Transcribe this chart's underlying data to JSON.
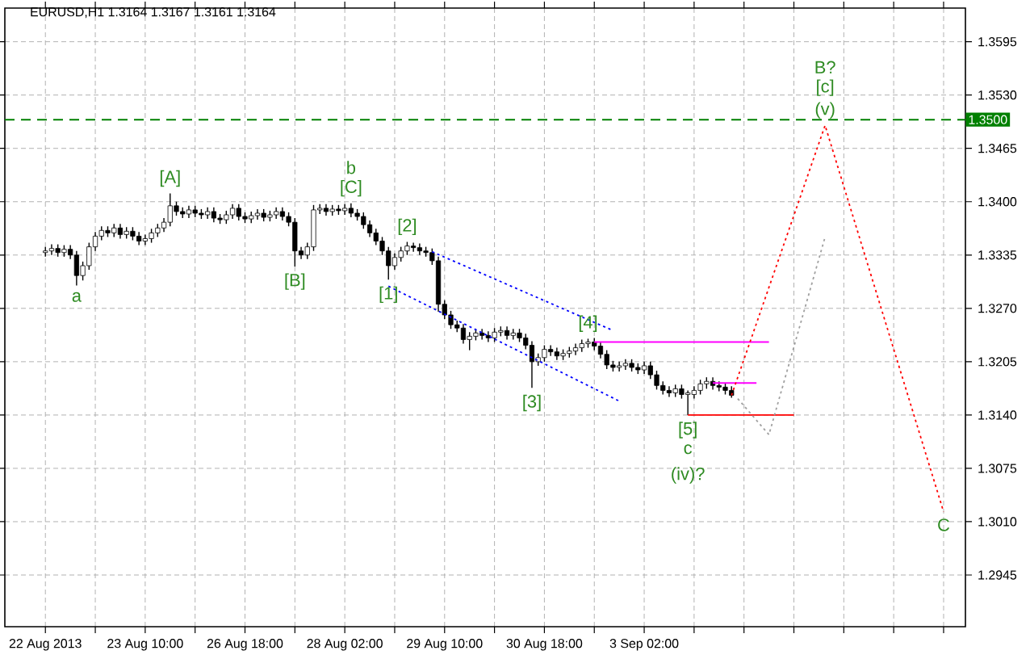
{
  "chart_data": {
    "type": "candlestick",
    "title": "EURUSD,H1  1.3164 1.3167 1.3161 1.3164",
    "color": "#000000",
    "categories": [
      "22 Aug 2013",
      null,
      null,
      null,
      null,
      null,
      null,
      null,
      null,
      null,
      null,
      null,
      null,
      null,
      null,
      null,
      "23 Aug 10:00",
      null,
      null,
      null,
      null,
      null,
      null,
      null,
      null,
      null,
      null,
      null,
      null,
      null,
      null,
      null,
      "26 Aug 18:00",
      null,
      null,
      null,
      null,
      null,
      null,
      null,
      null,
      null,
      null,
      null,
      null,
      null,
      null,
      null,
      "28 Aug 02:00",
      null,
      null,
      null,
      null,
      null,
      null,
      null,
      null,
      null,
      null,
      null,
      null,
      null,
      null,
      null,
      "29 Aug 10:00",
      null,
      null,
      null,
      null,
      null,
      null,
      null,
      null,
      null,
      null,
      null,
      null,
      null,
      null,
      null,
      "30 Aug 18:00",
      null,
      null,
      null,
      null,
      null,
      null,
      null,
      null,
      null,
      null,
      null,
      null,
      null,
      null,
      null,
      "3 Sep 02:00",
      null,
      null,
      null,
      null,
      null,
      null,
      null,
      null,
      null,
      null,
      null,
      null,
      null,
      null,
      null,
      null,
      null,
      null,
      null,
      null,
      null,
      null,
      null,
      null,
      null,
      null,
      null,
      null,
      null,
      null,
      null,
      null,
      null,
      null,
      null,
      null,
      null,
      null,
      null,
      null,
      null,
      null,
      null,
      null,
      null,
      null,
      null,
      null,
      null,
      null,
      null
    ],
    "ohlc": [
      [
        1.3338,
        1.3345,
        1.3333,
        1.334
      ],
      [
        1.334,
        1.3348,
        1.3335,
        1.3343
      ],
      [
        1.3343,
        1.3348,
        1.3333,
        1.3338
      ],
      [
        1.3338,
        1.3347,
        1.3333,
        1.3342
      ],
      [
        1.3342,
        1.3347,
        1.333,
        1.3335
      ],
      [
        1.3335,
        1.334,
        1.3298,
        1.331
      ],
      [
        1.331,
        1.3327,
        1.3304,
        1.3322
      ],
      [
        1.3322,
        1.335,
        1.3317,
        1.3345
      ],
      [
        1.3345,
        1.3363,
        1.334,
        1.3358
      ],
      [
        1.3358,
        1.337,
        1.3353,
        1.3365
      ],
      [
        1.3365,
        1.337,
        1.3357,
        1.3362
      ],
      [
        1.3362,
        1.3373,
        1.3357,
        1.3368
      ],
      [
        1.3368,
        1.3373,
        1.3355,
        1.336
      ],
      [
        1.336,
        1.3369,
        1.3355,
        1.3364
      ],
      [
        1.3364,
        1.3369,
        1.3353,
        1.3358
      ],
      [
        1.3358,
        1.3363,
        1.3347,
        1.3352
      ],
      [
        1.3352,
        1.336,
        1.3347,
        1.3355
      ],
      [
        1.3355,
        1.3367,
        1.335,
        1.3362
      ],
      [
        1.3362,
        1.3373,
        1.3357,
        1.3368
      ],
      [
        1.3368,
        1.338,
        1.3363,
        1.3375
      ],
      [
        1.3375,
        1.341,
        1.337,
        1.3395
      ],
      [
        1.3395,
        1.34,
        1.3383,
        1.3388
      ],
      [
        1.3388,
        1.3393,
        1.338,
        1.3385
      ],
      [
        1.3385,
        1.3395,
        1.338,
        1.339
      ],
      [
        1.339,
        1.3395,
        1.3381,
        1.3386
      ],
      [
        1.3386,
        1.3391,
        1.3379,
        1.3384
      ],
      [
        1.3384,
        1.3393,
        1.3379,
        1.3388
      ],
      [
        1.3388,
        1.3393,
        1.3375,
        1.338
      ],
      [
        1.338,
        1.3385,
        1.3373,
        1.3378
      ],
      [
        1.3378,
        1.3389,
        1.3373,
        1.3384
      ],
      [
        1.3384,
        1.3397,
        1.3379,
        1.3392
      ],
      [
        1.3392,
        1.3397,
        1.3377,
        1.3382
      ],
      [
        1.3382,
        1.3387,
        1.3374,
        1.3379
      ],
      [
        1.3379,
        1.3388,
        1.3374,
        1.3383
      ],
      [
        1.3383,
        1.3391,
        1.3378,
        1.3386
      ],
      [
        1.3386,
        1.3391,
        1.3376,
        1.3381
      ],
      [
        1.3381,
        1.3389,
        1.3376,
        1.3384
      ],
      [
        1.3384,
        1.3393,
        1.3379,
        1.3388
      ],
      [
        1.3388,
        1.3393,
        1.3377,
        1.3382
      ],
      [
        1.3382,
        1.3387,
        1.337,
        1.3375
      ],
      [
        1.3375,
        1.338,
        1.3321,
        1.334
      ],
      [
        1.334,
        1.3345,
        1.333,
        1.3335
      ],
      [
        1.3335,
        1.335,
        1.333,
        1.3345
      ],
      [
        1.3345,
        1.3396,
        1.334,
        1.339
      ],
      [
        1.339,
        1.3397,
        1.3385,
        1.3392
      ],
      [
        1.3392,
        1.3397,
        1.3383,
        1.3388
      ],
      [
        1.3388,
        1.3396,
        1.3383,
        1.3391
      ],
      [
        1.3391,
        1.3396,
        1.3384,
        1.3389
      ],
      [
        1.3389,
        1.3397,
        1.3384,
        1.3392
      ],
      [
        1.3392,
        1.3398,
        1.3381,
        1.3386
      ],
      [
        1.3386,
        1.3391,
        1.3377,
        1.3382
      ],
      [
        1.3382,
        1.3387,
        1.3367,
        1.3372
      ],
      [
        1.3372,
        1.3377,
        1.3357,
        1.3362
      ],
      [
        1.3362,
        1.3367,
        1.3347,
        1.3352
      ],
      [
        1.3352,
        1.3357,
        1.3335,
        1.334
      ],
      [
        1.334,
        1.3345,
        1.3305,
        1.3322
      ],
      [
        1.3322,
        1.3337,
        1.3317,
        1.3332
      ],
      [
        1.3332,
        1.3345,
        1.3327,
        1.334
      ],
      [
        1.334,
        1.3351,
        1.3335,
        1.3346
      ],
      [
        1.3346,
        1.335,
        1.3339,
        1.3344
      ],
      [
        1.3344,
        1.3349,
        1.3335,
        1.334
      ],
      [
        1.334,
        1.3345,
        1.3333,
        1.3338
      ],
      [
        1.3338,
        1.3343,
        1.3323,
        1.3328
      ],
      [
        1.3328,
        1.3333,
        1.3266,
        1.3275
      ],
      [
        1.3275,
        1.328,
        1.3257,
        1.3262
      ],
      [
        1.3262,
        1.3267,
        1.3245,
        1.325
      ],
      [
        1.325,
        1.3255,
        1.3241,
        1.3246
      ],
      [
        1.3246,
        1.3251,
        1.3227,
        1.3232
      ],
      [
        1.3232,
        1.3241,
        1.3219,
        1.3236
      ],
      [
        1.3236,
        1.3245,
        1.3231,
        1.324
      ],
      [
        1.324,
        1.3245,
        1.3232,
        1.3237
      ],
      [
        1.3237,
        1.3242,
        1.3229,
        1.3234
      ],
      [
        1.3234,
        1.3246,
        1.3229,
        1.3241
      ],
      [
        1.3241,
        1.3248,
        1.3236,
        1.3243
      ],
      [
        1.3243,
        1.3248,
        1.3232,
        1.3237
      ],
      [
        1.3237,
        1.3245,
        1.3232,
        1.324
      ],
      [
        1.324,
        1.3245,
        1.3229,
        1.3234
      ],
      [
        1.3234,
        1.3239,
        1.322,
        1.3225
      ],
      [
        1.3225,
        1.323,
        1.3173,
        1.3205
      ],
      [
        1.3205,
        1.3215,
        1.32,
        1.321
      ],
      [
        1.321,
        1.3225,
        1.3205,
        1.322
      ],
      [
        1.322,
        1.3225,
        1.3212,
        1.3217
      ],
      [
        1.3217,
        1.3222,
        1.3207,
        1.3212
      ],
      [
        1.3212,
        1.322,
        1.3207,
        1.3215
      ],
      [
        1.3215,
        1.3223,
        1.321,
        1.3218
      ],
      [
        1.3218,
        1.3227,
        1.3213,
        1.3222
      ],
      [
        1.3222,
        1.3232,
        1.3217,
        1.3227
      ],
      [
        1.3227,
        1.3233,
        1.3222,
        1.3229
      ],
      [
        1.3229,
        1.3234,
        1.3219,
        1.3224
      ],
      [
        1.3224,
        1.3229,
        1.3209,
        1.3214
      ],
      [
        1.3214,
        1.3219,
        1.3196,
        1.3201
      ],
      [
        1.3201,
        1.3206,
        1.3193,
        1.3198
      ],
      [
        1.3198,
        1.3205,
        1.3193,
        1.32
      ],
      [
        1.32,
        1.3208,
        1.3195,
        1.3203
      ],
      [
        1.3203,
        1.3208,
        1.3193,
        1.3198
      ],
      [
        1.3198,
        1.3203,
        1.319,
        1.3195
      ],
      [
        1.3195,
        1.3205,
        1.319,
        1.32
      ],
      [
        1.32,
        1.3205,
        1.3184,
        1.3189
      ],
      [
        1.3189,
        1.3194,
        1.3171,
        1.3176
      ],
      [
        1.3176,
        1.3181,
        1.3165,
        1.317
      ],
      [
        1.317,
        1.3175,
        1.3162,
        1.3167
      ],
      [
        1.3167,
        1.3177,
        1.3162,
        1.3172
      ],
      [
        1.3172,
        1.3177,
        1.316,
        1.3165
      ],
      [
        1.3165,
        1.317,
        1.314,
        1.3167
      ],
      [
        1.3165,
        1.3175,
        1.316,
        1.317
      ],
      [
        1.317,
        1.3183,
        1.3165,
        1.3178
      ],
      [
        1.3178,
        1.3186,
        1.3172,
        1.3181
      ],
      [
        1.3181,
        1.3186,
        1.3171,
        1.3176
      ],
      [
        1.3176,
        1.3181,
        1.3169,
        1.3174
      ],
      [
        1.3174,
        1.3179,
        1.3165,
        1.317
      ],
      [
        1.317,
        1.3175,
        1.3161,
        1.3164
      ],
      null,
      null,
      null,
      null,
      null,
      null,
      null,
      null,
      null,
      null,
      null,
      null,
      null,
      null,
      null,
      null,
      null,
      null,
      null,
      null,
      null,
      null,
      null,
      null,
      null,
      null,
      null,
      null,
      null,
      null,
      null,
      null,
      null,
      null,
      null,
      null,
      null
    ],
    "series": [
      {
        "type": "line",
        "color": "#0000ff",
        "line_style": "dotted",
        "values": [
          null,
          null,
          null,
          null,
          null,
          null,
          null,
          null,
          null,
          null,
          null,
          null,
          null,
          null,
          null,
          null,
          null,
          null,
          null,
          null,
          null,
          null,
          null,
          null,
          null,
          null,
          null,
          null,
          null,
          null,
          null,
          null,
          null,
          null,
          null,
          null,
          null,
          null,
          null,
          null,
          null,
          null,
          null,
          null,
          null,
          null,
          null,
          null,
          null,
          null,
          null,
          null,
          null,
          null,
          null,
          null,
          null,
          null,
          null,
          null,
          null,
          null,
          1.3339,
          null,
          null,
          null,
          null,
          null,
          null,
          null,
          null,
          null,
          null,
          null,
          null,
          null,
          null,
          null,
          null,
          null,
          null,
          null,
          null,
          null,
          null,
          null,
          null,
          null,
          null,
          null,
          null,
          1.3243,
          null,
          null,
          null,
          null,
          null,
          null,
          null,
          null,
          null,
          null,
          null,
          null,
          null,
          null,
          null,
          null,
          null,
          null,
          null,
          null,
          null,
          null,
          null,
          null,
          null,
          null,
          null,
          null,
          null,
          null,
          null,
          null,
          null,
          null,
          null,
          null,
          null,
          null,
          null,
          null,
          null,
          null,
          null,
          null,
          null,
          null,
          null,
          null,
          null,
          null,
          null,
          null,
          null,
          null,
          null,
          null
        ]
      },
      {
        "type": "line",
        "color": "#0000ff",
        "line_style": "dotted",
        "values": [
          null,
          null,
          null,
          null,
          null,
          null,
          null,
          null,
          null,
          null,
          null,
          null,
          null,
          null,
          null,
          null,
          null,
          null,
          null,
          null,
          null,
          null,
          null,
          null,
          null,
          null,
          null,
          null,
          null,
          null,
          null,
          null,
          null,
          null,
          null,
          null,
          null,
          null,
          null,
          null,
          null,
          null,
          null,
          null,
          null,
          null,
          null,
          null,
          null,
          null,
          null,
          null,
          null,
          null,
          null,
          1.3297,
          null,
          null,
          null,
          null,
          null,
          null,
          null,
          null,
          null,
          null,
          null,
          null,
          null,
          null,
          null,
          null,
          null,
          null,
          null,
          null,
          null,
          null,
          null,
          null,
          null,
          null,
          null,
          null,
          null,
          null,
          null,
          null,
          null,
          null,
          null,
          null,
          1.3157,
          null,
          null,
          null,
          null,
          null,
          null,
          null,
          null,
          null,
          null,
          null,
          null,
          null,
          null,
          null,
          null,
          null,
          null,
          null,
          null,
          null,
          null,
          null,
          null,
          null,
          null,
          null,
          null,
          null,
          null,
          null,
          null,
          null,
          null,
          null,
          null,
          null,
          null,
          null,
          null,
          null,
          null,
          null,
          null,
          null,
          null,
          null,
          null,
          null,
          null,
          null,
          null,
          null,
          null,
          null
        ]
      },
      {
        "type": "line",
        "color": "#ff00ff",
        "line_style": "solid",
        "values": [
          null,
          null,
          null,
          null,
          null,
          null,
          null,
          null,
          null,
          null,
          null,
          null,
          null,
          null,
          null,
          null,
          null,
          null,
          null,
          null,
          null,
          null,
          null,
          null,
          null,
          null,
          null,
          null,
          null,
          null,
          null,
          null,
          null,
          null,
          null,
          null,
          null,
          null,
          null,
          null,
          null,
          null,
          null,
          null,
          null,
          null,
          null,
          null,
          null,
          null,
          null,
          null,
          null,
          null,
          null,
          null,
          null,
          null,
          null,
          null,
          null,
          null,
          null,
          null,
          null,
          null,
          null,
          null,
          null,
          null,
          null,
          null,
          null,
          null,
          null,
          null,
          null,
          null,
          null,
          null,
          null,
          null,
          null,
          null,
          null,
          null,
          null,
          null,
          1.3229,
          null,
          null,
          null,
          null,
          null,
          null,
          null,
          null,
          null,
          null,
          null,
          null,
          null,
          null,
          null,
          null,
          null,
          null,
          null,
          null,
          null,
          null,
          null,
          null,
          null,
          null,
          null,
          1.3229,
          null,
          null,
          null,
          null,
          null,
          null,
          null,
          null,
          null,
          null,
          null,
          null,
          null,
          null,
          null,
          null,
          null,
          null,
          null,
          null,
          null,
          null,
          null,
          null,
          null,
          null,
          null,
          null,
          null,
          null,
          null
        ]
      },
      {
        "type": "line",
        "color": "#ff00ff",
        "line_style": "solid",
        "values": [
          null,
          null,
          null,
          null,
          null,
          null,
          null,
          null,
          null,
          null,
          null,
          null,
          null,
          null,
          null,
          null,
          null,
          null,
          null,
          null,
          null,
          null,
          null,
          null,
          null,
          null,
          null,
          null,
          null,
          null,
          null,
          null,
          null,
          null,
          null,
          null,
          null,
          null,
          null,
          null,
          null,
          null,
          null,
          null,
          null,
          null,
          null,
          null,
          null,
          null,
          null,
          null,
          null,
          null,
          null,
          null,
          null,
          null,
          null,
          null,
          null,
          null,
          null,
          null,
          null,
          null,
          null,
          null,
          null,
          null,
          null,
          null,
          null,
          null,
          null,
          null,
          null,
          null,
          null,
          null,
          null,
          null,
          null,
          null,
          null,
          null,
          null,
          null,
          null,
          null,
          null,
          null,
          null,
          null,
          null,
          null,
          null,
          null,
          null,
          null,
          null,
          null,
          null,
          null,
          null,
          null,
          null,
          1.3179,
          null,
          null,
          null,
          null,
          null,
          null,
          1.3179,
          null,
          null,
          null,
          null,
          null,
          null,
          null,
          null,
          null,
          null,
          null,
          null,
          null,
          null,
          null,
          null,
          null,
          null,
          null,
          null,
          null,
          null,
          null,
          null,
          null,
          null,
          null,
          null,
          null,
          null,
          null,
          null,
          null
        ]
      },
      {
        "type": "line",
        "color": "#ff0000",
        "line_style": "solid",
        "values": [
          null,
          null,
          null,
          null,
          null,
          null,
          null,
          null,
          null,
          null,
          null,
          null,
          null,
          null,
          null,
          null,
          null,
          null,
          null,
          null,
          null,
          null,
          null,
          null,
          null,
          null,
          null,
          null,
          null,
          null,
          null,
          null,
          null,
          null,
          null,
          null,
          null,
          null,
          null,
          null,
          null,
          null,
          null,
          null,
          null,
          null,
          null,
          null,
          null,
          null,
          null,
          null,
          null,
          null,
          null,
          null,
          null,
          null,
          null,
          null,
          null,
          null,
          null,
          null,
          null,
          null,
          null,
          null,
          null,
          null,
          null,
          null,
          null,
          null,
          null,
          null,
          null,
          null,
          null,
          null,
          null,
          null,
          null,
          null,
          null,
          null,
          null,
          null,
          null,
          null,
          null,
          null,
          null,
          null,
          null,
          null,
          null,
          null,
          null,
          null,
          null,
          null,
          null,
          1.314,
          null,
          null,
          null,
          null,
          null,
          null,
          null,
          null,
          null,
          null,
          null,
          null,
          null,
          null,
          null,
          null,
          1.314,
          null,
          null,
          null,
          null,
          null,
          null,
          null,
          null,
          null,
          null,
          null,
          null,
          null,
          null,
          null,
          null,
          null,
          null,
          null,
          null,
          null,
          null,
          null,
          null,
          null,
          null,
          null
        ]
      },
      {
        "type": "line",
        "color": "#ff0000",
        "line_style": "dotted",
        "values": [
          null,
          null,
          null,
          null,
          null,
          null,
          null,
          null,
          null,
          null,
          null,
          null,
          null,
          null,
          null,
          null,
          null,
          null,
          null,
          null,
          null,
          null,
          null,
          null,
          null,
          null,
          null,
          null,
          null,
          null,
          null,
          null,
          null,
          null,
          null,
          null,
          null,
          null,
          null,
          null,
          null,
          null,
          null,
          null,
          null,
          null,
          null,
          null,
          null,
          null,
          null,
          null,
          null,
          null,
          null,
          null,
          null,
          null,
          null,
          null,
          null,
          null,
          null,
          null,
          null,
          null,
          null,
          null,
          null,
          null,
          null,
          null,
          null,
          null,
          null,
          null,
          null,
          null,
          null,
          null,
          null,
          null,
          null,
          null,
          null,
          null,
          null,
          null,
          null,
          null,
          null,
          null,
          null,
          null,
          null,
          null,
          null,
          null,
          null,
          null,
          null,
          null,
          null,
          null,
          null,
          null,
          null,
          null,
          null,
          null,
          1.3164,
          null,
          null,
          null,
          null,
          null,
          null,
          null,
          null,
          null,
          null,
          null,
          null,
          null,
          null,
          1.3493,
          null,
          null,
          null,
          null,
          null,
          null,
          null,
          null,
          null,
          null,
          null,
          null,
          null,
          null,
          null,
          null,
          null,
          null,
          1.3022,
          null,
          null,
          null
        ]
      },
      {
        "type": "line",
        "color": "#a0a0a0",
        "line_style": "dotted",
        "values": [
          null,
          null,
          null,
          null,
          null,
          null,
          null,
          null,
          null,
          null,
          null,
          null,
          null,
          null,
          null,
          null,
          null,
          null,
          null,
          null,
          null,
          null,
          null,
          null,
          null,
          null,
          null,
          null,
          null,
          null,
          null,
          null,
          null,
          null,
          null,
          null,
          null,
          null,
          null,
          null,
          null,
          null,
          null,
          null,
          null,
          null,
          null,
          null,
          null,
          null,
          null,
          null,
          null,
          null,
          null,
          null,
          null,
          null,
          null,
          null,
          null,
          null,
          null,
          null,
          null,
          null,
          null,
          null,
          null,
          null,
          null,
          null,
          null,
          null,
          null,
          null,
          null,
          null,
          null,
          null,
          null,
          null,
          null,
          null,
          null,
          null,
          null,
          null,
          null,
          null,
          null,
          null,
          null,
          null,
          null,
          null,
          null,
          null,
          null,
          null,
          null,
          null,
          null,
          null,
          null,
          null,
          null,
          null,
          null,
          null,
          null,
          1.316,
          null,
          null,
          null,
          null,
          1.3116,
          null,
          null,
          null,
          null,
          null,
          null,
          null,
          null,
          1.3357,
          null,
          null,
          null,
          null,
          null,
          null,
          null,
          null,
          null,
          null,
          null,
          null,
          null,
          null,
          null,
          null,
          null,
          null,
          null,
          null,
          null,
          null
        ]
      }
    ],
    "ref_lines": [
      {
        "axis": "y",
        "value": 1.35,
        "label": "1.3500",
        "color": "#008000",
        "line_style": "dashed"
      }
    ],
    "annotations": [
      {
        "text": "a",
        "y": 1.3298
      },
      {
        "text": "[A]",
        "y": 1.341
      },
      {
        "text": "[B]",
        "y": 1.3321
      },
      {
        "text": "b",
        "y": 1.3398
      },
      {
        "text": "[C]",
        "y": 1.3398
      },
      {
        "text": "[1]",
        "y": 1.3305
      },
      {
        "text": "[2]",
        "y": 1.3351
      },
      {
        "text": "[3]",
        "y": 1.3173
      },
      {
        "text": "[4]",
        "y": 1.3233
      },
      {
        "text": "[5]",
        "y": 1.314
      },
      {
        "text": "c",
        "y": 1.314
      },
      {
        "text": "(iv)?",
        "y": 1.314
      },
      {
        "text": "B?",
        "y": 1.3493
      },
      {
        "text": "[c]",
        "y": 1.3493
      },
      {
        "text": "(v)",
        "y": 1.3493
      },
      {
        "text": "C",
        "y": 1.3022
      }
    ],
    "ylim": [
      1.2882,
      1.3636
    ],
    "yticks": [
      {
        "value": 1.3595,
        "label": "1.3595"
      },
      {
        "value": 1.353,
        "label": "1.3530"
      },
      {
        "value": 1.3465,
        "label": "1.3465"
      },
      {
        "value": 1.34,
        "label": "1.3400"
      },
      {
        "value": 1.3335,
        "label": "1.3335"
      },
      {
        "value": 1.327,
        "label": "1.3270"
      },
      {
        "value": 1.3205,
        "label": "1.3205"
      },
      {
        "value": 1.314,
        "label": "1.3140"
      },
      {
        "value": 1.3075,
        "label": "1.3075"
      },
      {
        "value": 1.301,
        "label": "1.3010"
      },
      {
        "value": 1.2945,
        "label": "1.2945"
      }
    ],
    "grid": true
  }
}
